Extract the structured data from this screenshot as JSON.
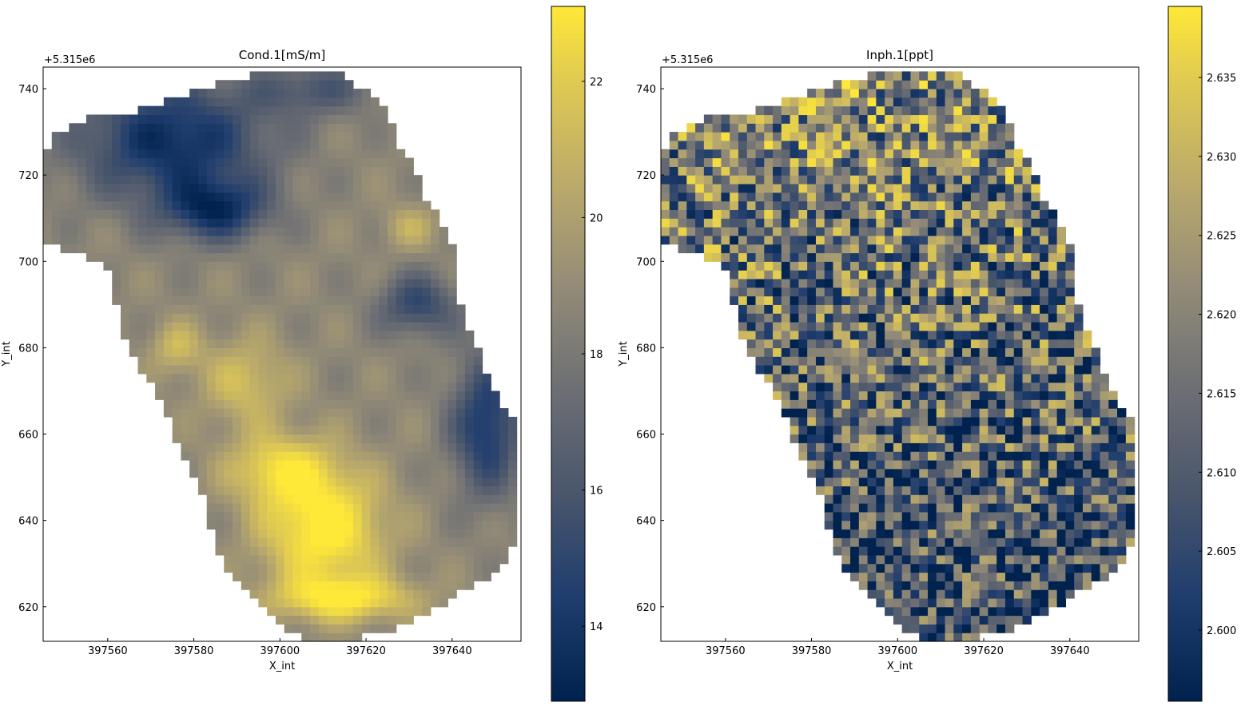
{
  "chart_data": [
    {
      "type": "heatmap",
      "title": "Cond.1[mS/m]",
      "xlabel": "X_int",
      "ylabel": "Y_int",
      "y_offset_label": "+5.315e6",
      "xlim": [
        397545,
        397656
      ],
      "ylim": [
        612,
        745
      ],
      "xticks": [
        397560,
        397580,
        397600,
        397620,
        397640
      ],
      "xtick_labels": [
        "397560",
        "397580",
        "397600",
        "397620",
        "397640"
      ],
      "yticks": [
        620,
        640,
        660,
        680,
        700,
        720,
        740
      ],
      "ytick_labels": [
        "620",
        "640",
        "660",
        "680",
        "700",
        "720",
        "740"
      ],
      "colormap": "cividis",
      "colorbar": {
        "range": [
          12.9,
          23.1
        ],
        "ticks": [
          14,
          16,
          18,
          20,
          22
        ],
        "tick_labels": [
          "14",
          "16",
          "18",
          "20",
          "22"
        ]
      },
      "grid": false,
      "field_summary": {
        "grid_cell_size": 2,
        "low_zone": "north-west lobe and eastern edge (~13-15 mS/m)",
        "high_zone": "south-central around x 397600-397620, y 625-650 (~22-23 mS/m)"
      }
    },
    {
      "type": "heatmap",
      "title": "Inph.1[ppt]",
      "xlabel": "X_int",
      "ylabel": "Y_int",
      "y_offset_label": "+5.315e6",
      "xlim": [
        397545,
        397656
      ],
      "ylim": [
        612,
        745
      ],
      "xticks": [
        397560,
        397580,
        397600,
        397620,
        397640
      ],
      "xtick_labels": [
        "397560",
        "397580",
        "397600",
        "397620",
        "397640"
      ],
      "yticks": [
        620,
        640,
        660,
        680,
        700,
        720,
        740
      ],
      "ytick_labels": [
        "620",
        "640",
        "660",
        "680",
        "700",
        "720",
        "740"
      ],
      "colormap": "cividis",
      "colorbar": {
        "range": [
          2.5955,
          2.6395
        ],
        "ticks": [
          2.6,
          2.605,
          2.61,
          2.615,
          2.62,
          2.625,
          2.63,
          2.635
        ],
        "tick_labels": [
          "2.600",
          "2.605",
          "2.610",
          "2.615",
          "2.620",
          "2.625",
          "2.630",
          "2.635"
        ]
      },
      "grid": false,
      "field_summary": {
        "grid_cell_size": 2,
        "pattern": "noisy; higher values concentrated in northern half, lower values in south"
      }
    }
  ]
}
